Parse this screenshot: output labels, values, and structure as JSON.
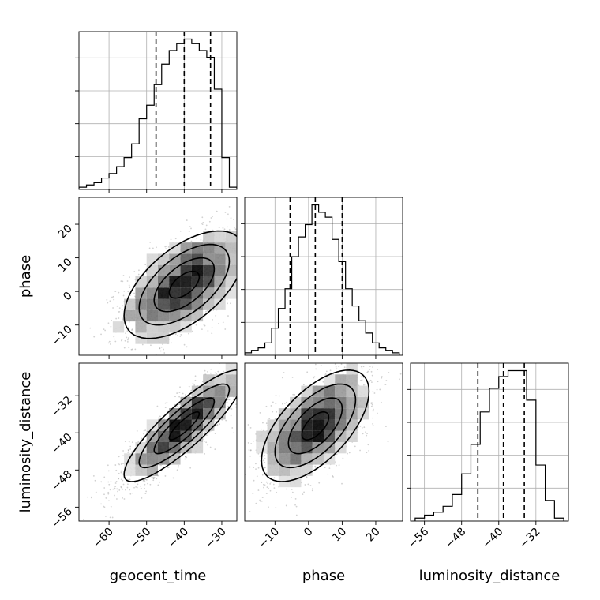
{
  "chart_data": [
    {
      "type": "histogram",
      "panel": "geocent_time",
      "xlim": [
        -68,
        -26
      ],
      "bin_edges": [
        -68,
        -66,
        -64,
        -62,
        -60,
        -58,
        -56,
        -54,
        -52,
        -50,
        -48,
        -46,
        -44,
        -42,
        -40,
        -38,
        -36,
        -34,
        -32,
        -30,
        -28,
        -26
      ],
      "counts": [
        1,
        2,
        3,
        5,
        7,
        10,
        14,
        20,
        31,
        37,
        46,
        55,
        61,
        64,
        66,
        64,
        61,
        58,
        44,
        14,
        1
      ],
      "quantiles": [
        -47.5,
        -40,
        -33
      ],
      "xticks": [
        -60,
        -50,
        -40,
        -30
      ],
      "grid": true
    },
    {
      "type": "scatter-density",
      "panel": "geocent_time vs phase",
      "x": "geocent_time",
      "y": "phase",
      "xlim": [
        -68,
        -26
      ],
      "ylim": [
        -19,
        28
      ],
      "mean": [
        -40,
        2
      ],
      "std": [
        8,
        8
      ],
      "correlation": 0.58,
      "xticks": [
        -60,
        -50,
        -40,
        -30
      ],
      "yticks": [
        20,
        10,
        0,
        -10
      ],
      "ylabel": "phase"
    },
    {
      "type": "histogram",
      "panel": "phase",
      "xlim": [
        -19,
        28
      ],
      "bin_edges": [
        -19,
        -17,
        -15,
        -13,
        -11,
        -9,
        -7,
        -5,
        -3,
        -1,
        1,
        3,
        5,
        7,
        9,
        11,
        13,
        15,
        17,
        19,
        21,
        23,
        25,
        27
      ],
      "counts": [
        1,
        2,
        3,
        5,
        11,
        19,
        27,
        40,
        48,
        53,
        61,
        58,
        56,
        47,
        38,
        27,
        20,
        14,
        9,
        5,
        3,
        2,
        1
      ],
      "quantiles": [
        -5.5,
        2,
        10
      ],
      "xticks": [
        -10,
        0,
        10,
        20
      ],
      "grid": true
    },
    {
      "type": "scatter-density",
      "panel": "geocent_time vs luminosity_distance",
      "x": "geocent_time",
      "y": "luminosity_distance",
      "xlim": [
        -68,
        -26
      ],
      "ylim": [
        -59,
        -25
      ],
      "mean": [
        -40,
        -38.5
      ],
      "std": [
        8,
        6
      ],
      "correlation": 0.87,
      "xticks": [
        -60,
        -50,
        -40,
        -30
      ],
      "yticks": [
        -32,
        -40,
        -48,
        -56
      ],
      "xlabel": "geocent_time",
      "ylabel": "luminosity_distance"
    },
    {
      "type": "scatter-density",
      "panel": "phase vs luminosity_distance",
      "x": "phase",
      "y": "luminosity_distance",
      "xlim": [
        -19,
        28
      ],
      "ylim": [
        -59,
        -25
      ],
      "mean": [
        2,
        -38.5
      ],
      "std": [
        8,
        6
      ],
      "correlation": 0.62,
      "xticks": [
        -10,
        0,
        10,
        20
      ],
      "xlabel": "phase"
    },
    {
      "type": "histogram",
      "panel": "luminosity_distance",
      "xlim": [
        -59,
        -25
      ],
      "bin_edges": [
        -58,
        -56,
        -54,
        -52,
        -50,
        -48,
        -46,
        -44,
        -42,
        -40,
        -38,
        -36,
        -34,
        -32,
        -30,
        -28,
        -26
      ],
      "counts": [
        1,
        2,
        3,
        5,
        9,
        16,
        26,
        37,
        45,
        49,
        51,
        51,
        41,
        19,
        7,
        1
      ],
      "quantiles": [
        -44.5,
        -39,
        -34.5
      ],
      "xticks": [
        -56,
        -48,
        -40,
        -32
      ],
      "xlabel": "luminosity_distance",
      "grid": true
    }
  ]
}
